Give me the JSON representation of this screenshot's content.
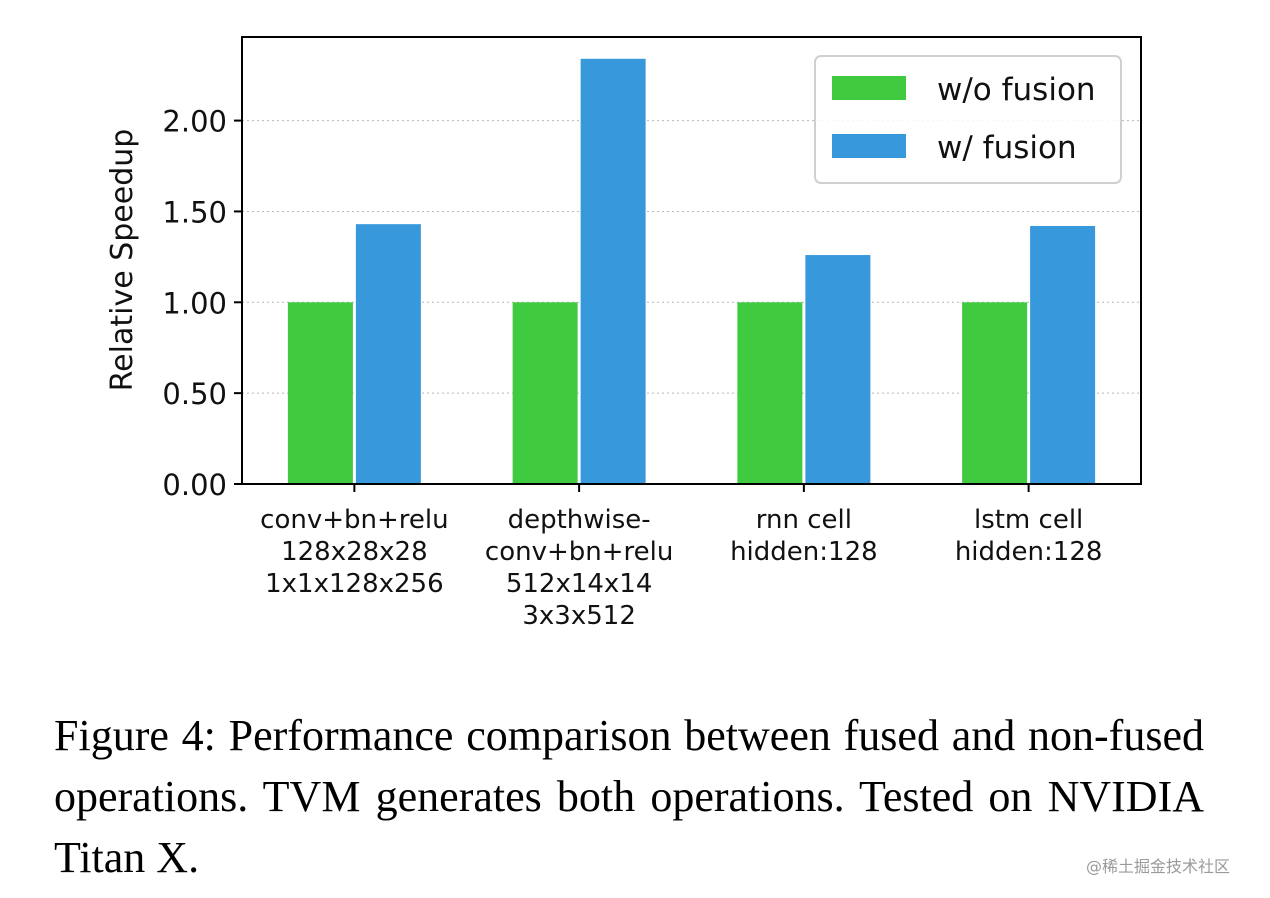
{
  "chart_data": {
    "type": "bar",
    "title": "",
    "xlabel": "",
    "ylabel": "Relative Speedup",
    "ylim": [
      0,
      2.46
    ],
    "yticks": [
      0.0,
      0.5,
      1.0,
      1.5,
      2.0
    ],
    "ytick_labels": [
      "0.00",
      "0.50",
      "1.00",
      "1.50",
      "2.00"
    ],
    "grid": "horizontal dotted",
    "legend_position": "top-right",
    "categories": [
      [
        "conv+bn+relu",
        "128x28x28",
        "1x1x128x256"
      ],
      [
        "depthwise-",
        "conv+bn+relu",
        "512x14x14",
        "3x3x512"
      ],
      [
        "rnn cell",
        "hidden:128"
      ],
      [
        "lstm cell",
        "hidden:128"
      ]
    ],
    "series": [
      {
        "name": "w/o fusion",
        "color": "#3fca3f",
        "values": [
          1.0,
          1.0,
          1.0,
          1.0
        ]
      },
      {
        "name": "w/ fusion",
        "color": "#3898dc",
        "values": [
          1.43,
          2.34,
          1.26,
          1.42
        ]
      }
    ]
  },
  "caption": "Figure 4:  Performance comparison between fused and non-fused operations.  TVM generates both operations. Tested on NVIDIA Titan X.",
  "watermark": "@稀土掘金技术社区"
}
